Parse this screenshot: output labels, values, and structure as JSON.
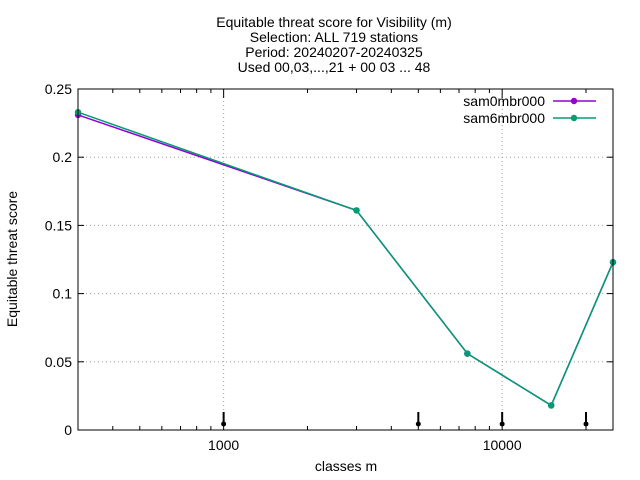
{
  "chart_data": {
    "type": "line",
    "title_lines": [
      "Equitable threat score  for Visibility (m)",
      "Selection: ALL    719 stations",
      "Period: 20240207-20240325",
      "Used 00,03,...,21 + 00 03 ... 48"
    ],
    "xlabel": "classes m",
    "ylabel": "Equitable threat score",
    "x_scale": "log",
    "xlim": [
      300,
      25000
    ],
    "ylim": [
      0,
      0.25
    ],
    "x_ticks": [
      {
        "value": 1000,
        "label": "1000"
      },
      {
        "value": 10000,
        "label": "10000"
      }
    ],
    "y_ticks": [
      {
        "value": 0,
        "label": "0"
      },
      {
        "value": 0.05,
        "label": "0.05"
      },
      {
        "value": 0.1,
        "label": "0.1"
      },
      {
        "value": 0.15,
        "label": "0.15"
      },
      {
        "value": 0.2,
        "label": "0.2"
      },
      {
        "value": 0.25,
        "label": "0.25"
      }
    ],
    "grid": true,
    "legend_position": "top-right",
    "series": [
      {
        "name": "sam0mbr000",
        "color": "#9400d3",
        "x": [
          300,
          3000,
          7500,
          15000,
          25000
        ],
        "y": [
          0.231,
          0.161,
          0.056,
          0.018,
          0.123
        ]
      },
      {
        "name": "sam6mbr000",
        "color": "#009e73",
        "x": [
          300,
          3000,
          7500,
          15000,
          25000
        ],
        "y": [
          0.233,
          0.161,
          0.056,
          0.018,
          0.123
        ]
      }
    ],
    "markers_x": [
      1000,
      5000,
      10000,
      20000
    ]
  }
}
